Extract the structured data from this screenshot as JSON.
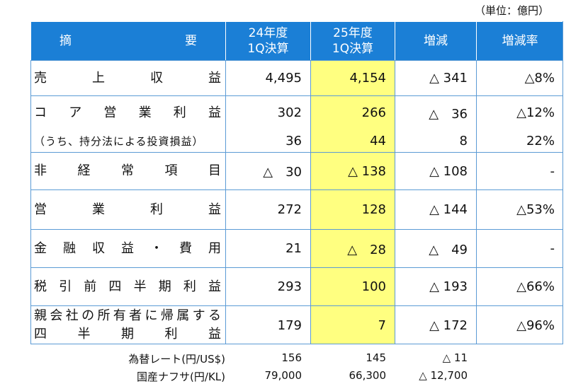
{
  "unit": "（単位：億円）",
  "table": {
    "header": [
      [
        "摘要"
      ],
      [
        "24年度",
        "1Q決算"
      ],
      [
        "25年度",
        "1Q決算"
      ],
      [
        "増減"
      ],
      [
        "増減率"
      ]
    ],
    "rows": [
      {
        "label": [
          "売上収益"
        ],
        "cells": [
          "4,495",
          "4,154",
          "△ 341",
          "△8%"
        ]
      },
      {
        "label": [
          "コア営業利益"
        ],
        "cells": [
          "302",
          "266",
          "△　36",
          "△12%"
        ]
      },
      {
        "label": [
          "（うち、持分法による投資損益）"
        ],
        "cells": [
          "36",
          "44",
          "8",
          "22%"
        ]
      },
      {
        "label": [
          "非経常項目"
        ],
        "cells": [
          "△　30",
          "△ 138",
          "△ 108",
          "-"
        ]
      },
      {
        "label": [
          "営業利益"
        ],
        "cells": [
          "272",
          "128",
          "△ 144",
          "△53%"
        ]
      },
      {
        "label": [
          "金融収益・費用"
        ],
        "cells": [
          "21",
          "△　28",
          "△　49",
          "-"
        ]
      },
      {
        "label": [
          "税引前四半期利益"
        ],
        "cells": [
          "293",
          "100",
          "△ 193",
          "△66%"
        ]
      },
      {
        "label": [
          "親会社の所有者に帰属する",
          "四半期利益"
        ],
        "cells": [
          "179",
          "7",
          "△ 172",
          "△96%"
        ]
      }
    ]
  },
  "footer": {
    "rows": [
      {
        "label": "為替レート(円/US$)",
        "cells": [
          "156",
          "145",
          "△ 11"
        ]
      },
      {
        "label": "国産ナフサ(円/KL)",
        "cells": [
          "79,000",
          "66,300",
          "△ 12,700"
        ]
      }
    ]
  }
}
